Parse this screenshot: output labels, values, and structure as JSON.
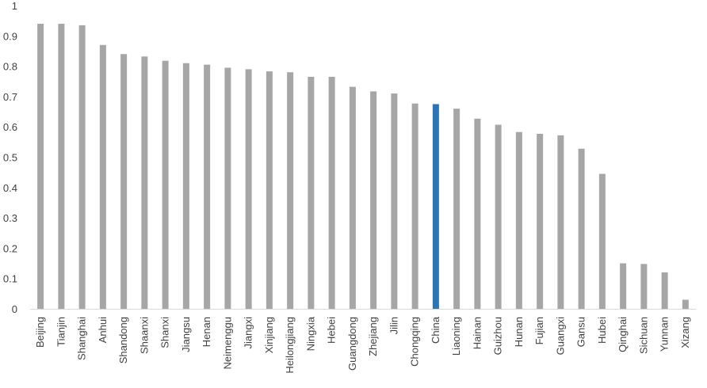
{
  "chart_data": {
    "type": "bar",
    "title": "",
    "xlabel": "",
    "ylabel": "",
    "ylim": [
      0,
      1
    ],
    "yticks": [
      "0",
      "0.1",
      "0.2",
      "0.3",
      "0.4",
      "0.5",
      "0.6",
      "0.7",
      "0.8",
      "0.9",
      "1"
    ],
    "grid": false,
    "legend": "none",
    "bar_color": "#a6a6a6",
    "highlight_color": "#2e75b6",
    "highlight_category": "China",
    "categories": [
      "Beijing",
      "Tianjin",
      "Shanghai",
      "Anhui",
      "Shandong",
      "Shaanxi",
      "Shanxi",
      "Jiangsu",
      "Henan",
      "Neimenggu",
      "Jiangxi",
      "Xinjiang",
      "Heilongjiang",
      "Ningxia",
      "Hebei",
      "Guangdong",
      "Zhejiang",
      "Jilin",
      "Chongqing",
      "China",
      "Liaoning",
      "Hainan",
      "Guizhou",
      "Hunan",
      "Fujian",
      "Guangxi",
      "Gansu",
      "Hubei",
      "Qinghai",
      "Sichuan",
      "Yunnan",
      "Xizang"
    ],
    "values": [
      0.94,
      0.94,
      0.935,
      0.87,
      0.84,
      0.832,
      0.818,
      0.81,
      0.805,
      0.795,
      0.79,
      0.783,
      0.78,
      0.765,
      0.765,
      0.732,
      0.717,
      0.71,
      0.677,
      0.675,
      0.66,
      0.627,
      0.607,
      0.583,
      0.577,
      0.572,
      0.528,
      0.445,
      0.15,
      0.148,
      0.12,
      0.03
    ]
  }
}
